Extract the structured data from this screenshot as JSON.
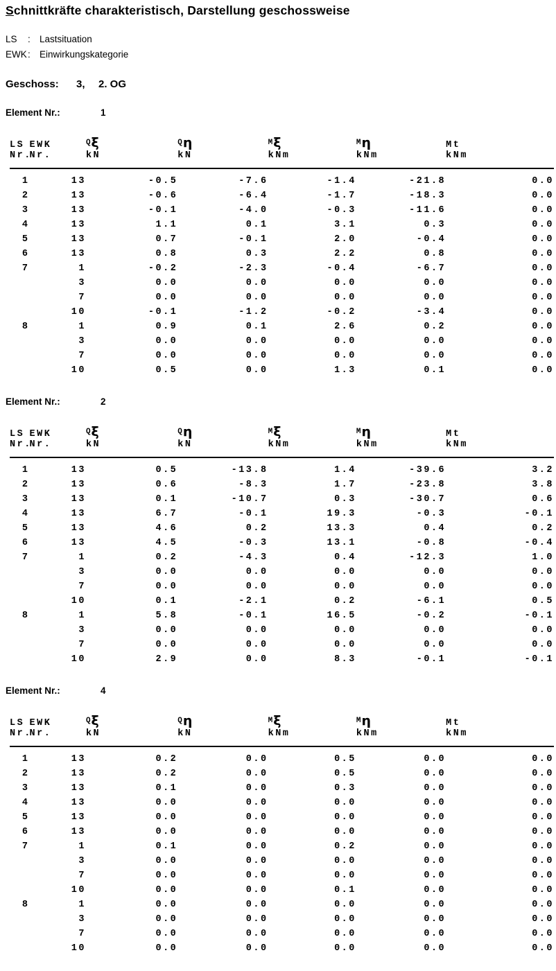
{
  "document": {
    "title": {
      "underlined": "S",
      "rest": "chnittkräfte charakteristisch, Darstellung geschossweise"
    },
    "legend": {
      "ls_abbr": "LS",
      "ls_sep": ":",
      "ls_label": "Lastsituation",
      "ewk_abbr": "EWK",
      "ewk_sep": ":",
      "ewk_label": "Einwirkungskategorie"
    },
    "geschoss": {
      "label": "Geschoss:",
      "number": "3,",
      "name": "2. OG"
    },
    "element_label": "Element Nr.:"
  },
  "table_header": {
    "ls_top": "LS",
    "ls_bottom": "Nr.",
    "ewk_top": "EWK",
    "ewk_bottom": "Nr.",
    "q_xi": {
      "base": "Q",
      "greek": "ξ",
      "unit": "kN"
    },
    "q_eta": {
      "base": "Q",
      "greek": "η",
      "unit": "kN"
    },
    "m_xi": {
      "base": "M",
      "greek": "ξ",
      "unit": "kNm"
    },
    "m_eta": {
      "base": "M",
      "greek": "η",
      "unit": "kNm"
    },
    "mt": {
      "label": "Mt",
      "unit": "kNm"
    }
  },
  "elements": [
    {
      "number": "1",
      "rows": [
        [
          "1",
          "13",
          "-0.5",
          "-7.6",
          "-1.4",
          "-21.8",
          "0.0"
        ],
        [
          "2",
          "13",
          "-0.6",
          "-6.4",
          "-1.7",
          "-18.3",
          "0.0"
        ],
        [
          "3",
          "13",
          "-0.1",
          "-4.0",
          "-0.3",
          "-11.6",
          "0.0"
        ],
        [
          "4",
          "13",
          "1.1",
          "0.1",
          "3.1",
          "0.3",
          "0.0"
        ],
        [
          "5",
          "13",
          "0.7",
          "-0.1",
          "2.0",
          "-0.4",
          "0.0"
        ],
        [
          "6",
          "13",
          "0.8",
          "0.3",
          "2.2",
          "0.8",
          "0.0"
        ],
        [
          "7",
          "1",
          "-0.2",
          "-2.3",
          "-0.4",
          "-6.7",
          "0.0"
        ],
        [
          "",
          "3",
          "0.0",
          "0.0",
          "0.0",
          "0.0",
          "0.0"
        ],
        [
          "",
          "7",
          "0.0",
          "0.0",
          "0.0",
          "0.0",
          "0.0"
        ],
        [
          "",
          "10",
          "-0.1",
          "-1.2",
          "-0.2",
          "-3.4",
          "0.0"
        ],
        [
          "8",
          "1",
          "0.9",
          "0.1",
          "2.6",
          "0.2",
          "0.0"
        ],
        [
          "",
          "3",
          "0.0",
          "0.0",
          "0.0",
          "0.0",
          "0.0"
        ],
        [
          "",
          "7",
          "0.0",
          "0.0",
          "0.0",
          "0.0",
          "0.0"
        ],
        [
          "",
          "10",
          "0.5",
          "0.0",
          "1.3",
          "0.1",
          "0.0"
        ]
      ]
    },
    {
      "number": "2",
      "rows": [
        [
          "1",
          "13",
          "0.5",
          "-13.8",
          "1.4",
          "-39.6",
          "3.2"
        ],
        [
          "2",
          "13",
          "0.6",
          "-8.3",
          "1.7",
          "-23.8",
          "3.8"
        ],
        [
          "3",
          "13",
          "0.1",
          "-10.7",
          "0.3",
          "-30.7",
          "0.6"
        ],
        [
          "4",
          "13",
          "6.7",
          "-0.1",
          "19.3",
          "-0.3",
          "-0.1"
        ],
        [
          "5",
          "13",
          "4.6",
          "0.2",
          "13.3",
          "0.4",
          "0.2"
        ],
        [
          "6",
          "13",
          "4.5",
          "-0.3",
          "13.1",
          "-0.8",
          "-0.4"
        ],
        [
          "7",
          "1",
          "0.2",
          "-4.3",
          "0.4",
          "-12.3",
          "1.0"
        ],
        [
          "",
          "3",
          "0.0",
          "0.0",
          "0.0",
          "0.0",
          "0.0"
        ],
        [
          "",
          "7",
          "0.0",
          "0.0",
          "0.0",
          "0.0",
          "0.0"
        ],
        [
          "",
          "10",
          "0.1",
          "-2.1",
          "0.2",
          "-6.1",
          "0.5"
        ],
        [
          "8",
          "1",
          "5.8",
          "-0.1",
          "16.5",
          "-0.2",
          "-0.1"
        ],
        [
          "",
          "3",
          "0.0",
          "0.0",
          "0.0",
          "0.0",
          "0.0"
        ],
        [
          "",
          "7",
          "0.0",
          "0.0",
          "0.0",
          "0.0",
          "0.0"
        ],
        [
          "",
          "10",
          "2.9",
          "0.0",
          "8.3",
          "-0.1",
          "-0.1"
        ]
      ]
    },
    {
      "number": "4",
      "rows": [
        [
          "1",
          "13",
          "0.2",
          "0.0",
          "0.5",
          "0.0",
          "0.0"
        ],
        [
          "2",
          "13",
          "0.2",
          "0.0",
          "0.5",
          "0.0",
          "0.0"
        ],
        [
          "3",
          "13",
          "0.1",
          "0.0",
          "0.3",
          "0.0",
          "0.0"
        ],
        [
          "4",
          "13",
          "0.0",
          "0.0",
          "0.0",
          "0.0",
          "0.0"
        ],
        [
          "5",
          "13",
          "0.0",
          "0.0",
          "0.0",
          "0.0",
          "0.0"
        ],
        [
          "6",
          "13",
          "0.0",
          "0.0",
          "0.0",
          "0.0",
          "0.0"
        ],
        [
          "7",
          "1",
          "0.1",
          "0.0",
          "0.2",
          "0.0",
          "0.0"
        ],
        [
          "",
          "3",
          "0.0",
          "0.0",
          "0.0",
          "0.0",
          "0.0"
        ],
        [
          "",
          "7",
          "0.0",
          "0.0",
          "0.0",
          "0.0",
          "0.0"
        ],
        [
          "",
          "10",
          "0.0",
          "0.0",
          "0.1",
          "0.0",
          "0.0"
        ],
        [
          "8",
          "1",
          "0.0",
          "0.0",
          "0.0",
          "0.0",
          "0.0"
        ],
        [
          "",
          "3",
          "0.0",
          "0.0",
          "0.0",
          "0.0",
          "0.0"
        ],
        [
          "",
          "7",
          "0.0",
          "0.0",
          "0.0",
          "0.0",
          "0.0"
        ],
        [
          "",
          "10",
          "0.0",
          "0.0",
          "0.0",
          "0.0",
          "0.0"
        ]
      ]
    }
  ]
}
